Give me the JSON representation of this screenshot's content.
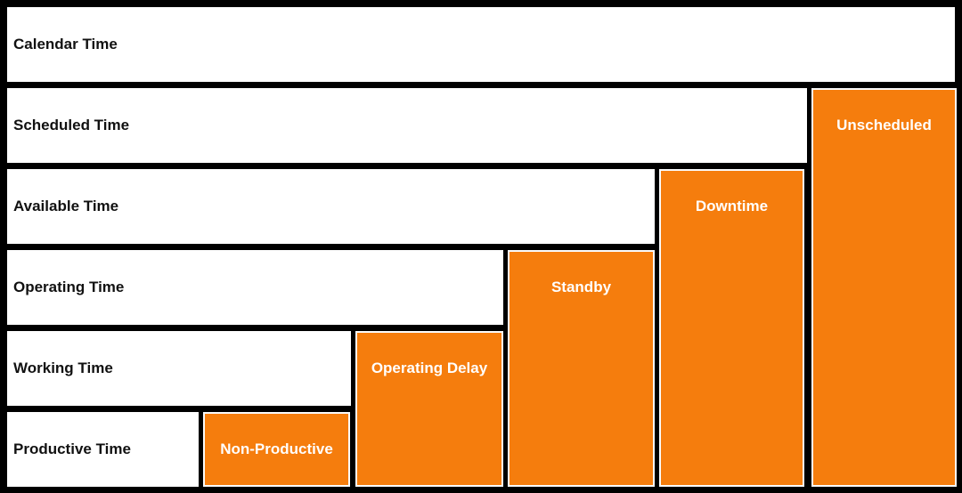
{
  "diagram": {
    "rows": [
      {
        "label": "Calendar Time"
      },
      {
        "label": "Scheduled Time"
      },
      {
        "label": "Available Time"
      },
      {
        "label": "Operating Time"
      },
      {
        "label": "Working Time"
      },
      {
        "label": "Productive Time"
      }
    ],
    "columns": [
      {
        "label": "Unscheduled"
      },
      {
        "label": "Downtime"
      },
      {
        "label": "Standby"
      },
      {
        "label": "Operating Delay"
      },
      {
        "label": "Non-Productive"
      }
    ],
    "colors": {
      "background": "#000000",
      "row_fill": "#ffffff",
      "loss_fill": "#f57d0d",
      "loss_outline": "#fafafa",
      "row_text": "#111111",
      "loss_text": "#ffffff"
    }
  }
}
